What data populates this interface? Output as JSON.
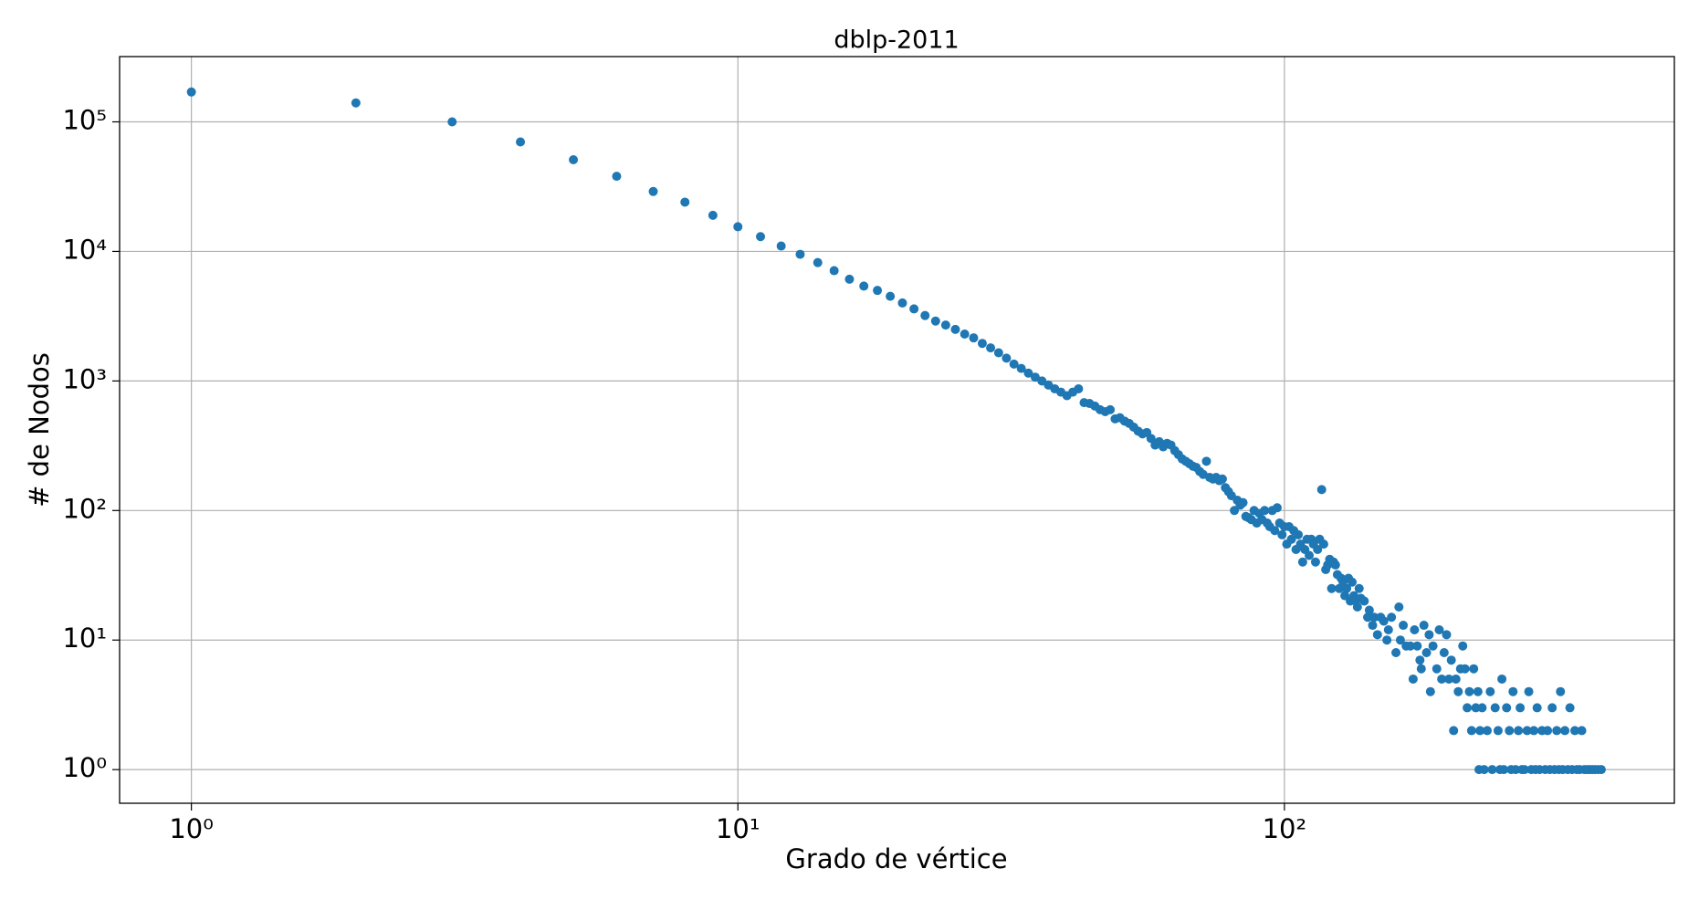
{
  "chart_data": {
    "type": "scatter",
    "title": "dblp-2011",
    "xlabel": "Grado de vértice",
    "ylabel": "# de Nodos",
    "xscale": "log",
    "yscale": "log",
    "grid": true,
    "color": "#1f77b4",
    "xlim": [
      0.739,
      517
    ],
    "ylim": [
      0.55,
      319000
    ],
    "xticks": [
      {
        "value": 1,
        "label": "10⁰"
      },
      {
        "value": 10,
        "label": "10¹"
      },
      {
        "value": 100,
        "label": "10²"
      }
    ],
    "yticks": [
      {
        "value": 1,
        "label": "10⁰"
      },
      {
        "value": 10,
        "label": "10¹"
      },
      {
        "value": 100,
        "label": "10²"
      },
      {
        "value": 1000,
        "label": "10³"
      },
      {
        "value": 10000,
        "label": "10⁴"
      },
      {
        "value": 100000,
        "label": "10⁵"
      }
    ],
    "x": [
      1,
      2,
      3,
      4,
      5,
      6,
      7,
      8,
      9,
      10,
      11,
      12,
      13,
      14,
      15,
      16,
      17,
      18,
      19,
      20,
      21,
      22,
      23,
      24,
      25,
      26,
      27,
      28,
      29,
      30,
      31,
      32,
      33,
      34,
      35,
      36,
      37,
      38,
      39,
      40,
      41,
      42,
      43,
      44,
      45,
      46,
      47,
      48,
      49,
      50,
      51,
      52,
      53,
      54,
      55,
      56,
      57,
      58,
      59,
      60,
      61,
      62,
      63,
      64,
      65,
      66,
      67,
      68,
      69,
      70,
      71,
      72,
      73,
      74,
      75,
      76,
      77,
      78,
      79,
      80,
      81,
      82,
      83,
      84,
      85,
      86,
      87,
      88,
      89,
      90,
      91,
      92,
      93,
      94,
      95,
      96,
      97,
      98,
      99,
      100,
      101,
      102,
      103,
      104,
      105,
      106,
      107,
      108,
      109,
      110,
      111,
      112,
      113,
      114,
      115,
      116,
      117,
      118,
      119,
      120,
      121,
      122,
      123,
      124,
      125,
      126,
      127,
      128,
      129,
      130,
      131,
      132,
      133,
      134,
      135,
      136,
      137,
      138,
      140,
      142,
      143,
      145,
      146,
      148,
      150,
      152,
      154,
      155,
      157,
      160,
      162,
      163,
      165,
      167,
      170,
      172,
      173,
      175,
      177,
      178,
      180,
      182,
      184,
      185,
      187,
      190,
      192,
      194,
      196,
      198,
      200,
      202,
      204,
      206,
      208,
      210,
      212,
      214,
      216,
      218,
      220,
      222,
      224,
      226,
      227,
      228,
      230,
      232,
      235,
      238,
      240,
      243,
      246,
      248,
      250,
      252,
      255,
      258,
      260,
      262,
      265,
      268,
      270,
      272,
      275,
      278,
      280,
      283,
      286,
      288,
      290,
      293,
      296,
      300,
      303,
      306,
      309,
      312,
      315,
      318,
      320,
      323,
      326,
      330,
      333,
      336,
      340,
      343,
      347,
      350,
      354,
      358,
      362,
      366,
      370,
      375,
      380
    ],
    "values": [
      170000,
      140000,
      100000,
      70000,
      51000,
      38000,
      29000,
      24000,
      19000,
      15500,
      13000,
      11000,
      9500,
      8200,
      7100,
      6100,
      5400,
      5000,
      4500,
      4000,
      3600,
      3200,
      2900,
      2700,
      2500,
      2300,
      2150,
      1950,
      1800,
      1650,
      1500,
      1350,
      1250,
      1150,
      1070,
      1000,
      930,
      870,
      820,
      770,
      820,
      870,
      680,
      670,
      640,
      600,
      580,
      600,
      510,
      520,
      490,
      470,
      440,
      410,
      390,
      400,
      360,
      320,
      340,
      310,
      330,
      320,
      290,
      270,
      250,
      240,
      230,
      220,
      215,
      200,
      190,
      240,
      180,
      175,
      180,
      170,
      175,
      150,
      140,
      130,
      100,
      120,
      110,
      115,
      90,
      88,
      85,
      100,
      80,
      95,
      85,
      100,
      80,
      75,
      100,
      70,
      105,
      80,
      65,
      75,
      55,
      75,
      60,
      70,
      50,
      65,
      55,
      40,
      50,
      60,
      45,
      60,
      55,
      40,
      50,
      60,
      145,
      55,
      35,
      38,
      42,
      25,
      40,
      38,
      32,
      25,
      30,
      28,
      22,
      25,
      30,
      20,
      28,
      22,
      20,
      18,
      25,
      21,
      20,
      15,
      17,
      13,
      15,
      11,
      15,
      14,
      10,
      12,
      15,
      8,
      18,
      10,
      13,
      9,
      9,
      5,
      12,
      9,
      7,
      6,
      13,
      8,
      11,
      4,
      9,
      6,
      12,
      5,
      8,
      11,
      5,
      7,
      2,
      5,
      4,
      6,
      9,
      6,
      3,
      4,
      2,
      6,
      3,
      4,
      1,
      2,
      3,
      1,
      2,
      4,
      1,
      3,
      2,
      1,
      5,
      1,
      3,
      2,
      1,
      4,
      1,
      2,
      3,
      1,
      1,
      2,
      4,
      1,
      2,
      1,
      3,
      1,
      2,
      1,
      2,
      1,
      3,
      1,
      2,
      1,
      4,
      1,
      2,
      1,
      3,
      1,
      2,
      1,
      1,
      2,
      1,
      1,
      1,
      1,
      1,
      1,
      1
    ]
  }
}
